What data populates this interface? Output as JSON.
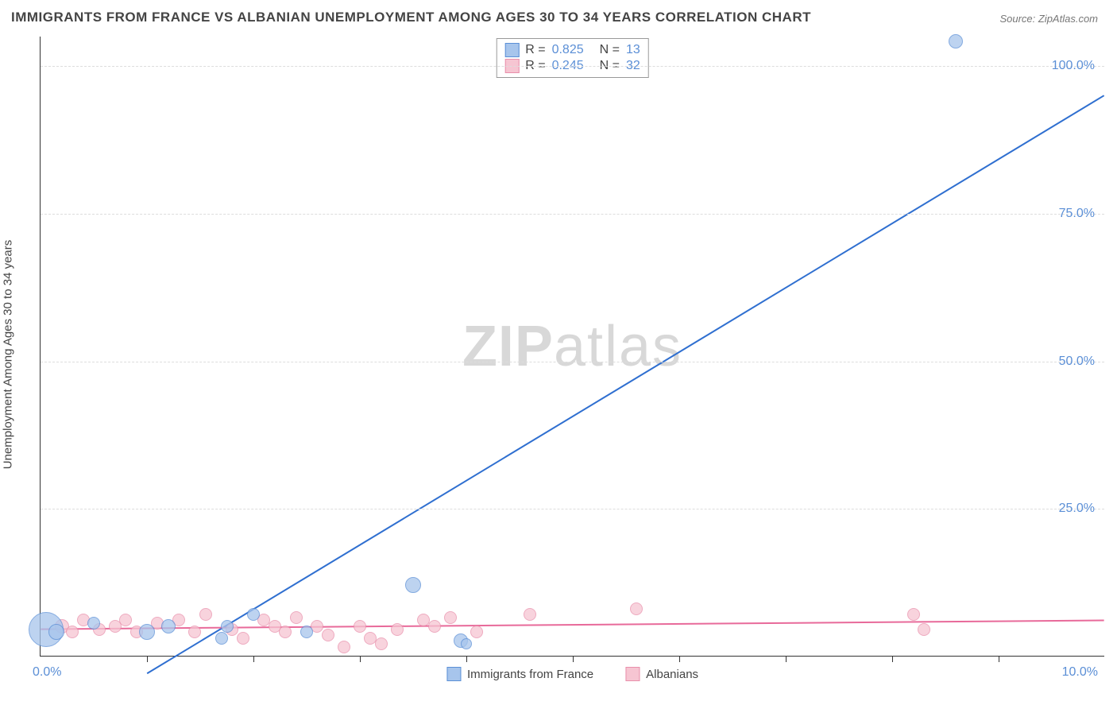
{
  "title": "IMMIGRANTS FROM FRANCE VS ALBANIAN UNEMPLOYMENT AMONG AGES 30 TO 34 YEARS CORRELATION CHART",
  "source": "Source: ZipAtlas.com",
  "watermark": {
    "bold": "ZIP",
    "light": "atlas"
  },
  "chart": {
    "type": "scatter-regression",
    "y_axis_label": "Unemployment Among Ages 30 to 34 years",
    "xlim": [
      0.0,
      10.0
    ],
    "ylim": [
      0.0,
      105.0
    ],
    "x_origin_label": "0.0%",
    "x_max_label": "10.0%",
    "y_ticks": [
      25.0,
      50.0,
      75.0,
      100.0
    ],
    "y_tick_labels": [
      "25.0%",
      "50.0%",
      "75.0%",
      "100.0%"
    ],
    "x_minor_ticks": [
      1,
      2,
      3,
      4,
      5,
      6,
      7,
      8,
      9
    ],
    "grid_color": "#e0e0e0",
    "background_color": "#ffffff",
    "series": [
      {
        "name": "Immigrants from France",
        "legend_label": "Immigrants from France",
        "color_fill": "#a7c5ec",
        "color_stroke": "#5b8fd6",
        "line_color": "#2f6fd0",
        "line_width": 2,
        "R": "0.825",
        "N": "13",
        "regression": {
          "x1": 1.0,
          "y1": -3.0,
          "x2": 10.0,
          "y2": 95.0
        },
        "points": [
          {
            "x": 0.05,
            "y": 4.5,
            "r": 22
          },
          {
            "x": 0.15,
            "y": 4.0,
            "r": 10
          },
          {
            "x": 0.5,
            "y": 5.5,
            "r": 8
          },
          {
            "x": 1.0,
            "y": 4.0,
            "r": 10
          },
          {
            "x": 1.2,
            "y": 5.0,
            "r": 9
          },
          {
            "x": 1.7,
            "y": 3.0,
            "r": 8
          },
          {
            "x": 1.75,
            "y": 5.0,
            "r": 8
          },
          {
            "x": 2.0,
            "y": 7.0,
            "r": 8
          },
          {
            "x": 2.5,
            "y": 4.0,
            "r": 8
          },
          {
            "x": 3.5,
            "y": 12.0,
            "r": 10
          },
          {
            "x": 3.95,
            "y": 2.5,
            "r": 9
          },
          {
            "x": 4.0,
            "y": 2.0,
            "r": 7
          },
          {
            "x": 8.6,
            "y": 104.0,
            "r": 9
          }
        ]
      },
      {
        "name": "Albanians",
        "legend_label": "Albanians",
        "color_fill": "#f6c5d2",
        "color_stroke": "#e98fab",
        "line_color": "#e86a9a",
        "line_width": 2,
        "R": "0.245",
        "N": "32",
        "regression": {
          "x1": 0.0,
          "y1": 4.5,
          "x2": 10.0,
          "y2": 6.0
        },
        "points": [
          {
            "x": 0.2,
            "y": 5.0,
            "r": 9
          },
          {
            "x": 0.3,
            "y": 4.0,
            "r": 8
          },
          {
            "x": 0.4,
            "y": 6.0,
            "r": 8
          },
          {
            "x": 0.55,
            "y": 4.5,
            "r": 8
          },
          {
            "x": 0.7,
            "y": 5.0,
            "r": 8
          },
          {
            "x": 0.8,
            "y": 6.0,
            "r": 8
          },
          {
            "x": 0.9,
            "y": 4.0,
            "r": 8
          },
          {
            "x": 1.1,
            "y": 5.5,
            "r": 8
          },
          {
            "x": 1.3,
            "y": 6.0,
            "r": 8
          },
          {
            "x": 1.45,
            "y": 4.0,
            "r": 8
          },
          {
            "x": 1.55,
            "y": 7.0,
            "r": 8
          },
          {
            "x": 1.8,
            "y": 4.5,
            "r": 8
          },
          {
            "x": 1.9,
            "y": 3.0,
            "r": 8
          },
          {
            "x": 2.1,
            "y": 6.0,
            "r": 8
          },
          {
            "x": 2.2,
            "y": 5.0,
            "r": 8
          },
          {
            "x": 2.3,
            "y": 4.0,
            "r": 8
          },
          {
            "x": 2.4,
            "y": 6.5,
            "r": 8
          },
          {
            "x": 2.6,
            "y": 5.0,
            "r": 8
          },
          {
            "x": 2.7,
            "y": 3.5,
            "r": 8
          },
          {
            "x": 2.85,
            "y": 1.5,
            "r": 8
          },
          {
            "x": 3.0,
            "y": 5.0,
            "r": 8
          },
          {
            "x": 3.1,
            "y": 3.0,
            "r": 8
          },
          {
            "x": 3.2,
            "y": 2.0,
            "r": 8
          },
          {
            "x": 3.35,
            "y": 4.5,
            "r": 8
          },
          {
            "x": 3.6,
            "y": 6.0,
            "r": 8
          },
          {
            "x": 3.7,
            "y": 5.0,
            "r": 8
          },
          {
            "x": 3.85,
            "y": 6.5,
            "r": 8
          },
          {
            "x": 4.1,
            "y": 4.0,
            "r": 8
          },
          {
            "x": 4.6,
            "y": 7.0,
            "r": 8
          },
          {
            "x": 5.6,
            "y": 8.0,
            "r": 8
          },
          {
            "x": 8.2,
            "y": 7.0,
            "r": 8
          },
          {
            "x": 8.3,
            "y": 4.5,
            "r": 8
          }
        ]
      }
    ]
  }
}
